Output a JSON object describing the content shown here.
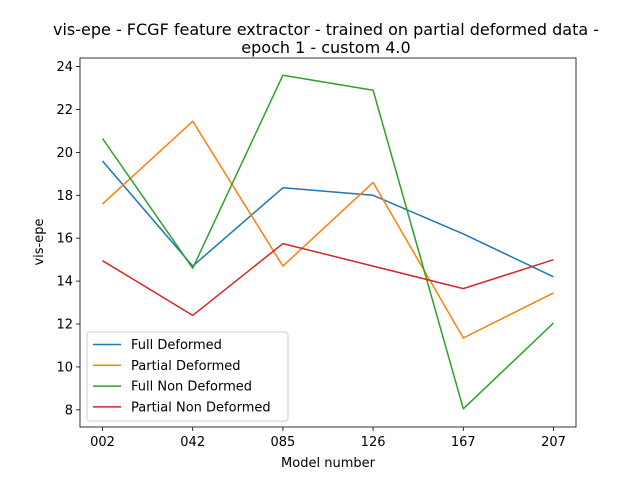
{
  "chart_data": {
    "type": "line",
    "title": "vis-epe - FCGF feature extractor -  trained on partial deformed data -\nepoch 1 - custom 4.0",
    "xlabel": "Model number",
    "ylabel": "vis-epe",
    "categories": [
      "002",
      "042",
      "085",
      "126",
      "167",
      "207"
    ],
    "ylim": [
      7.2,
      24.4
    ],
    "yticks": [
      8,
      10,
      12,
      14,
      16,
      18,
      20,
      22,
      24
    ],
    "grid": false,
    "legend_position": "lower-left",
    "series": [
      {
        "name": "Full Deformed",
        "color": "#1f77b4",
        "values": [
          19.6,
          14.7,
          18.35,
          18.0,
          16.2,
          14.2
        ]
      },
      {
        "name": "Partial Deformed",
        "color": "#ff7f0e",
        "values": [
          17.6,
          21.45,
          14.7,
          18.6,
          11.35,
          13.45
        ]
      },
      {
        "name": "Full Non Deformed",
        "color": "#2ca02c",
        "values": [
          20.65,
          14.6,
          23.6,
          22.9,
          8.05,
          12.05
        ]
      },
      {
        "name": "Partial Non Deformed",
        "color": "#d62728",
        "values": [
          14.95,
          12.4,
          15.75,
          14.7,
          13.65,
          15.0
        ]
      }
    ]
  }
}
